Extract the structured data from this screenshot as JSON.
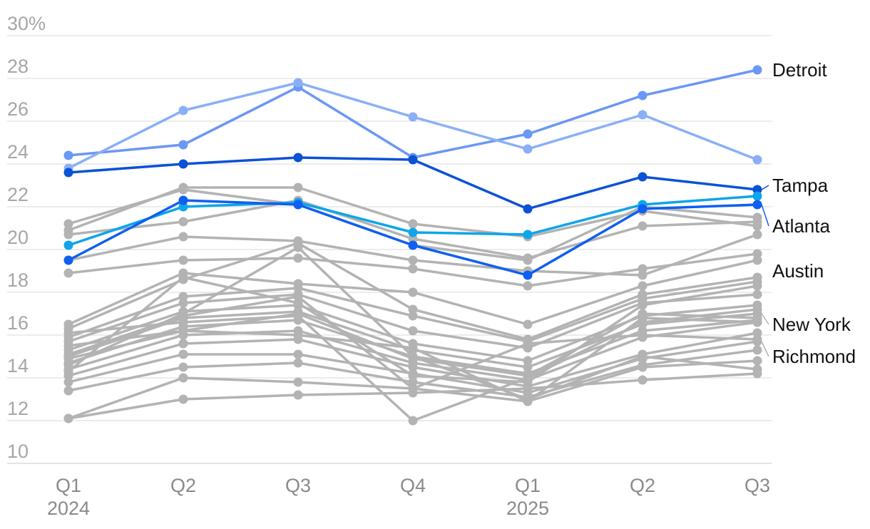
{
  "chart_data": {
    "type": "line",
    "y_unit_suffix": "%",
    "ylim": [
      10,
      30
    ],
    "yticks": [
      10,
      12,
      14,
      16,
      18,
      20,
      22,
      24,
      26,
      28,
      30
    ],
    "categories": [
      "Q1",
      "Q2",
      "Q3",
      "Q4",
      "Q1",
      "Q2",
      "Q3"
    ],
    "year_labels": [
      {
        "index": 0,
        "text": "2024"
      },
      {
        "index": 4,
        "text": "2025"
      }
    ],
    "colors": {
      "gray": "#b3b3b3",
      "detroit": "#6b97f5",
      "other_light_blue": "#8aaff7",
      "tampa": "#0a52d6",
      "atlanta": "#0f5ff0",
      "bright_blue": "#0ea5e9"
    },
    "gray_series": [
      [
        21.2,
        22.8,
        22.1,
        20.2,
        19.5,
        22.0,
        21.5
      ],
      [
        20.9,
        22.9,
        22.9,
        21.2,
        20.6,
        21.8,
        21.1
      ],
      [
        20.7,
        21.3,
        22.3,
        20.5,
        19.6,
        21.1,
        21.3
      ],
      [
        19.5,
        20.6,
        20.4,
        19.5,
        19.0,
        18.8,
        20.7
      ],
      [
        18.9,
        19.5,
        19.6,
        19.1,
        18.3,
        19.1,
        19.8
      ],
      [
        16.5,
        18.9,
        18.4,
        18.0,
        16.5,
        18.3,
        19.5
      ],
      [
        16.3,
        18.6,
        20.3,
        17.2,
        15.8,
        17.9,
        18.7
      ],
      [
        15.9,
        17.8,
        18.2,
        16.9,
        15.7,
        17.7,
        18.5
      ],
      [
        15.7,
        17.5,
        17.9,
        16.2,
        15.4,
        17.5,
        17.9
      ],
      [
        15.3,
        17.1,
        17.4,
        15.6,
        14.8,
        16.9,
        17.4
      ],
      [
        15.0,
        16.8,
        17.1,
        15.3,
        14.5,
        16.5,
        17.0
      ],
      [
        14.7,
        16.4,
        16.7,
        15.0,
        14.2,
        16.2,
        16.7
      ],
      [
        14.4,
        16.0,
        16.2,
        14.7,
        13.9,
        15.9,
        16.6
      ],
      [
        14.1,
        15.6,
        15.8,
        14.5,
        13.6,
        15.1,
        16.1
      ],
      [
        13.8,
        15.1,
        15.1,
        14.2,
        13.3,
        14.9,
        15.7
      ],
      [
        13.4,
        14.5,
        14.7,
        13.8,
        13.1,
        14.6,
        15.3
      ],
      [
        12.1,
        14.0,
        13.8,
        13.5,
        12.9,
        14.5,
        14.8
      ],
      [
        12.1,
        13.0,
        13.2,
        13.3,
        13.5,
        13.9,
        14.2
      ],
      [
        14.6,
        17.0,
        20.1,
        15.0,
        13.0,
        15.0,
        14.4
      ],
      [
        15.1,
        16.9,
        17.8,
        13.5,
        15.6,
        16.0,
        15.8
      ],
      [
        14.9,
        16.2,
        17.0,
        14.9,
        14.1,
        17.0,
        16.8
      ],
      [
        16.1,
        16.6,
        16.9,
        12.0,
        14.0,
        16.6,
        17.2
      ],
      [
        14.3,
        18.7,
        17.5,
        14.1,
        13.8,
        17.4,
        18.3
      ],
      [
        15.5,
        16.2,
        16.0,
        15.4,
        12.9,
        16.8,
        16.6
      ]
    ],
    "series": [
      {
        "name": "Detroit",
        "label": "Detroit",
        "color_key": "detroit",
        "values": [
          24.4,
          24.9,
          27.6,
          24.3,
          25.4,
          27.2,
          28.4
        ]
      },
      {
        "name": "Other light blue",
        "label": "",
        "color_key": "other_light_blue",
        "values": [
          23.8,
          26.5,
          27.8,
          26.2,
          24.7,
          26.3,
          24.2
        ]
      },
      {
        "name": "Tampa",
        "label": "Tampa",
        "color_key": "tampa",
        "values": [
          23.6,
          24.0,
          24.3,
          24.2,
          21.9,
          23.4,
          22.8
        ]
      },
      {
        "name": "Bright blue",
        "label": "",
        "color_key": "bright_blue",
        "values": [
          20.2,
          22.0,
          22.2,
          20.8,
          20.7,
          22.1,
          22.5
        ]
      },
      {
        "name": "Atlanta",
        "label": "Atlanta",
        "color_key": "atlanta",
        "values": [
          19.5,
          22.3,
          22.1,
          20.2,
          18.8,
          21.9,
          22.1
        ]
      }
    ],
    "labels": [
      {
        "text": "Detroit",
        "value": 28.4,
        "leader": false
      },
      {
        "text": "Tampa",
        "value": 23.0,
        "leader": true,
        "target_value": 22.8,
        "color_key": "tampa"
      },
      {
        "text": "Atlanta",
        "value": 21.1,
        "leader": true,
        "target_value": 22.1,
        "color_key": "atlanta"
      },
      {
        "text": "Austin",
        "value": 19.0,
        "leader": false
      },
      {
        "text": "New York",
        "value": 16.5,
        "leader": true,
        "target_value": 17.0,
        "color_key": "gray"
      },
      {
        "text": "Richmond",
        "value": 15.0,
        "leader": true,
        "target_value": 15.7,
        "color_key": "gray"
      }
    ]
  }
}
